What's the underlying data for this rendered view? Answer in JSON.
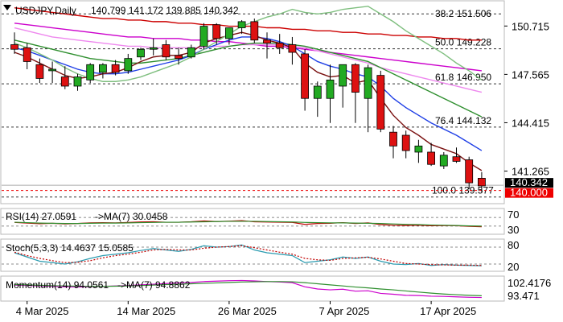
{
  "header": {
    "symbol": "USDJPY,Daily",
    "ohlc": "140.799 141.172 139.885 140.342"
  },
  "chart_data": [
    {
      "type": "candlestick",
      "title": "USDJPY,Daily",
      "ylim": [
        139.3,
        152.2
      ],
      "price_axis_labels": [
        "150.715",
        "147.565",
        "144.415",
        "141.265"
      ],
      "current_price_label": "140.342",
      "marker_price_label": "140.000",
      "fib_levels": [
        {
          "label": "50.0 149.228",
          "value": 149.228
        },
        {
          "label": "61.8 146.950",
          "value": 146.95
        },
        {
          "label": "76.4 144.132",
          "value": 144.132
        },
        {
          "label": "100.0 139.577",
          "value": 139.577
        }
      ],
      "fib_top_partial_label": "38.2 151.506",
      "fib_top_value": 151.506,
      "candles": [
        {
          "date": "2025-03-03",
          "o": 149.5,
          "h": 150.3,
          "l": 148.9,
          "c": 149.2
        },
        {
          "date": "2025-03-04",
          "o": 149.3,
          "h": 149.6,
          "l": 147.9,
          "c": 148.4
        },
        {
          "date": "2025-03-05",
          "o": 148.2,
          "h": 148.6,
          "l": 147.0,
          "c": 147.3
        },
        {
          "date": "2025-03-06",
          "o": 147.8,
          "h": 148.4,
          "l": 147.0,
          "c": 147.9
        },
        {
          "date": "2025-03-07",
          "o": 147.4,
          "h": 148.1,
          "l": 146.6,
          "c": 146.8
        },
        {
          "date": "2025-03-10",
          "o": 146.8,
          "h": 147.6,
          "l": 146.5,
          "c": 147.4
        },
        {
          "date": "2025-03-11",
          "o": 147.2,
          "h": 148.3,
          "l": 147.0,
          "c": 148.2
        },
        {
          "date": "2025-03-12",
          "o": 147.7,
          "h": 148.3,
          "l": 147.3,
          "c": 148.2
        },
        {
          "date": "2025-03-13",
          "o": 148.2,
          "h": 148.5,
          "l": 147.5,
          "c": 147.7
        },
        {
          "date": "2025-03-14",
          "o": 147.8,
          "h": 148.9,
          "l": 147.6,
          "c": 148.6
        },
        {
          "date": "2025-03-17",
          "o": 148.7,
          "h": 149.3,
          "l": 148.5,
          "c": 149.2
        },
        {
          "date": "2025-03-18",
          "o": 149.2,
          "h": 149.9,
          "l": 148.8,
          "c": 149.3
        },
        {
          "date": "2025-03-19",
          "o": 149.5,
          "h": 149.8,
          "l": 148.5,
          "c": 148.7
        },
        {
          "date": "2025-03-20",
          "o": 148.8,
          "h": 149.3,
          "l": 148.2,
          "c": 148.6
        },
        {
          "date": "2025-03-21",
          "o": 148.7,
          "h": 149.5,
          "l": 148.6,
          "c": 149.3
        },
        {
          "date": "2025-03-24",
          "o": 149.4,
          "h": 150.9,
          "l": 149.2,
          "c": 150.7
        },
        {
          "date": "2025-03-25",
          "o": 150.8,
          "h": 150.9,
          "l": 149.5,
          "c": 149.9
        },
        {
          "date": "2025-03-26",
          "o": 149.9,
          "h": 150.6,
          "l": 149.5,
          "c": 150.6
        },
        {
          "date": "2025-03-27",
          "o": 150.6,
          "h": 151.1,
          "l": 150.2,
          "c": 151.0
        },
        {
          "date": "2025-03-28",
          "o": 151.0,
          "h": 151.2,
          "l": 149.6,
          "c": 149.8
        },
        {
          "date": "2025-03-31",
          "o": 149.8,
          "h": 150.3,
          "l": 148.6,
          "c": 149.6
        },
        {
          "date": "2025-04-01",
          "o": 149.6,
          "h": 150.2,
          "l": 148.9,
          "c": 149.3
        },
        {
          "date": "2025-04-02",
          "o": 149.5,
          "h": 150.0,
          "l": 148.2,
          "c": 149.0
        },
        {
          "date": "2025-04-03",
          "o": 148.9,
          "h": 149.2,
          "l": 145.2,
          "c": 146.0
        },
        {
          "date": "2025-04-04",
          "o": 146.0,
          "h": 147.1,
          "l": 144.8,
          "c": 146.8
        },
        {
          "date": "2025-04-07",
          "o": 146.0,
          "h": 148.2,
          "l": 144.4,
          "c": 147.2
        },
        {
          "date": "2025-04-08",
          "o": 146.8,
          "h": 148.2,
          "l": 145.4,
          "c": 148.2
        },
        {
          "date": "2025-04-09",
          "o": 148.2,
          "h": 148.3,
          "l": 144.4,
          "c": 146.4
        },
        {
          "date": "2025-04-10",
          "o": 146.0,
          "h": 148.2,
          "l": 143.8,
          "c": 148.0
        },
        {
          "date": "2025-04-11",
          "o": 147.5,
          "h": 147.8,
          "l": 143.8,
          "c": 144.0
        },
        {
          "date": "2025-04-14",
          "o": 143.8,
          "h": 144.2,
          "l": 142.1,
          "c": 142.9
        },
        {
          "date": "2025-04-15",
          "o": 143.6,
          "h": 143.9,
          "l": 142.1,
          "c": 142.6
        },
        {
          "date": "2025-04-16",
          "o": 142.5,
          "h": 143.3,
          "l": 141.8,
          "c": 142.9
        },
        {
          "date": "2025-04-17",
          "o": 142.5,
          "h": 143.1,
          "l": 141.6,
          "c": 141.7
        },
        {
          "date": "2025-04-18",
          "o": 141.6,
          "h": 142.5,
          "l": 141.4,
          "c": 142.3
        },
        {
          "date": "2025-04-21",
          "o": 142.2,
          "h": 142.8,
          "l": 141.8,
          "c": 141.9
        },
        {
          "date": "2025-04-22",
          "o": 142.0,
          "h": 142.2,
          "l": 140.1,
          "c": 140.5
        },
        {
          "date": "2025-04-23",
          "o": 140.8,
          "h": 141.2,
          "l": 139.9,
          "c": 140.3
        }
      ],
      "moving_averages": [
        {
          "color": "#cc0000",
          "values": [
            151.9,
            151.8,
            151.7,
            151.6,
            151.5,
            151.4,
            151.3,
            151.2,
            151.2,
            151.1,
            151.1,
            151.0,
            151.0,
            150.9,
            150.9,
            150.8,
            150.8,
            150.7,
            150.7,
            150.7,
            150.6,
            150.6,
            150.5,
            150.5,
            150.4,
            150.4,
            150.3,
            150.3,
            150.2,
            150.2,
            150.1,
            150.1,
            150.0,
            150.0,
            149.9,
            149.9,
            149.8,
            149.8
          ]
        },
        {
          "color": "#cc00cc",
          "values": [
            150.9,
            150.8,
            150.7,
            150.6,
            150.5,
            150.4,
            150.3,
            150.2,
            150.1,
            150.0,
            150.0,
            149.9,
            149.9,
            149.9,
            149.8,
            149.8,
            149.7,
            149.7,
            149.6,
            149.5,
            149.4,
            149.4,
            149.3,
            149.2,
            149.1,
            149.0,
            148.9,
            148.8,
            148.7,
            148.6,
            148.5,
            148.4,
            148.3,
            148.2,
            148.1,
            148.0,
            147.9,
            147.8
          ]
        },
        {
          "color": "#ee88ee",
          "values": [
            150.6,
            150.4,
            150.2,
            150.0,
            149.9,
            149.8,
            149.7,
            149.6,
            149.5,
            149.4,
            149.4,
            149.3,
            149.3,
            149.3,
            149.3,
            149.3,
            149.4,
            149.4,
            149.5,
            149.5,
            149.5,
            149.5,
            149.4,
            149.3,
            149.1,
            148.9,
            148.7,
            148.5,
            148.3,
            148.0,
            147.8,
            147.6,
            147.4,
            147.2,
            147.0,
            146.8,
            146.6,
            146.4
          ]
        },
        {
          "color": "#2f8f2f",
          "values": [
            149.8,
            149.6,
            149.4,
            149.2,
            149.0,
            148.8,
            148.6,
            148.5,
            148.4,
            148.3,
            148.3,
            148.4,
            148.5,
            148.6,
            148.8,
            149.0,
            149.2,
            149.4,
            149.5,
            149.6,
            149.6,
            149.6,
            149.5,
            149.4,
            149.2,
            149.0,
            148.8,
            148.6,
            148.4,
            148.0,
            147.6,
            147.2,
            146.8,
            146.4,
            146.0,
            145.6,
            145.2,
            144.8
          ]
        },
        {
          "color": "#1f3fe6",
          "values": [
            149.3,
            149.1,
            148.8,
            148.5,
            148.2,
            147.9,
            147.7,
            147.6,
            147.6,
            147.7,
            147.9,
            148.1,
            148.3,
            148.5,
            148.8,
            149.2,
            149.5,
            149.8,
            150.0,
            150.0,
            149.9,
            149.7,
            149.4,
            148.9,
            148.4,
            148.1,
            147.9,
            147.6,
            147.4,
            146.8,
            146.0,
            145.4,
            144.9,
            144.4,
            144.0,
            143.6,
            143.1,
            142.6
          ]
        },
        {
          "color": "#7a1010",
          "values": [
            149.0,
            148.7,
            148.3,
            147.9,
            147.5,
            147.3,
            147.4,
            147.6,
            147.7,
            148.0,
            148.4,
            148.7,
            148.8,
            148.8,
            149.0,
            149.6,
            149.9,
            150.1,
            150.3,
            150.1,
            149.8,
            149.6,
            149.3,
            148.3,
            147.7,
            147.4,
            147.5,
            147.0,
            147.2,
            146.0,
            144.9,
            144.1,
            143.6,
            143.0,
            142.7,
            142.4,
            141.8,
            141.3
          ]
        },
        {
          "color": "#7fbf7f",
          "values": [
            149.6,
            149.3,
            148.9,
            148.5,
            148.0,
            147.6,
            147.3,
            147.1,
            147.1,
            147.2,
            147.4,
            147.7,
            148.0,
            148.3,
            148.7,
            149.2,
            149.7,
            150.2,
            150.7,
            151.0,
            151.3,
            151.5,
            151.8,
            151.6,
            151.5,
            151.6,
            151.8,
            151.9,
            152.0,
            151.5,
            151.0,
            150.4,
            149.9,
            149.4,
            148.9,
            148.3,
            147.8,
            147.2
          ]
        }
      ]
    },
    {
      "type": "line",
      "title": "RSI(14) 27.0591",
      "subtitle": "->MA(7) 30.0458",
      "ylim": [
        0,
        100
      ],
      "tick_labels": [
        "70",
        "30"
      ],
      "levels": [
        70,
        30
      ],
      "series": [
        {
          "color": "#c00000",
          "values": [
            47,
            44,
            41,
            43,
            40,
            42,
            45,
            46,
            45,
            47,
            49,
            50,
            48,
            48,
            50,
            54,
            51,
            53,
            55,
            50,
            49,
            48,
            47,
            38,
            42,
            43,
            46,
            42,
            45,
            37,
            34,
            33,
            34,
            32,
            33,
            32,
            29,
            27
          ]
        },
        {
          "color": "#2f8f2f",
          "values": [
            48,
            46,
            44,
            43,
            42,
            42,
            43,
            44,
            44,
            45,
            46,
            47,
            48,
            48,
            49,
            50,
            51,
            52,
            52,
            52,
            51,
            50,
            49,
            47,
            46,
            45,
            45,
            44,
            43,
            42,
            40,
            38,
            37,
            35,
            34,
            33,
            31,
            30
          ]
        }
      ]
    },
    {
      "type": "line",
      "title": "Stoch(5,3,3) 14.4637 15.0585",
      "ylim": [
        0,
        100
      ],
      "tick_labels": [
        "80",
        "20"
      ],
      "levels": [
        80,
        20
      ],
      "series": [
        {
          "color": "#2a9bb0",
          "values": [
            60,
            45,
            30,
            25,
            20,
            28,
            40,
            50,
            55,
            60,
            68,
            75,
            70,
            65,
            72,
            85,
            80,
            82,
            88,
            70,
            60,
            55,
            50,
            25,
            30,
            35,
            45,
            40,
            45,
            30,
            20,
            18,
            22,
            15,
            18,
            16,
            15,
            14
          ]
        },
        {
          "color": "#c00000",
          "values": [
            62,
            50,
            40,
            32,
            25,
            26,
            32,
            42,
            50,
            55,
            62,
            70,
            72,
            70,
            70,
            76,
            80,
            82,
            85,
            78,
            70,
            62,
            55,
            40,
            35,
            33,
            40,
            42,
            44,
            38,
            30,
            22,
            20,
            18,
            17,
            16,
            16,
            15
          ]
        }
      ]
    },
    {
      "type": "line",
      "title": "Momentum(14) 94.0561",
      "subtitle": "->MA(7) 94.8862",
      "ylim": [
        93.2,
        102.8
      ],
      "tick_labels": [
        "102.4176",
        "93.471"
      ],
      "series": [
        {
          "color": "#cc00cc",
          "values": [
            99.8,
            99.6,
            99.4,
            99.2,
            99.0,
            98.9,
            99.0,
            99.2,
            99.4,
            99.6,
            99.9,
            100.2,
            100.5,
            100.8,
            101.0,
            101.4,
            101.6,
            101.8,
            101.9,
            101.7,
            101.4,
            101.2,
            100.9,
            99.0,
            98.0,
            97.6,
            97.9,
            97.0,
            97.2,
            96.0,
            95.6,
            95.1,
            95.0,
            94.7,
            94.6,
            94.4,
            94.2,
            94.1
          ]
        },
        {
          "color": "#2f8f2f",
          "values": [
            100.0,
            99.9,
            99.7,
            99.5,
            99.4,
            99.3,
            99.2,
            99.2,
            99.3,
            99.4,
            99.6,
            99.8,
            100.0,
            100.2,
            100.4,
            100.6,
            100.8,
            101.0,
            101.2,
            101.3,
            101.4,
            101.4,
            101.3,
            100.9,
            100.4,
            99.9,
            99.4,
            98.9,
            98.5,
            98.0,
            97.6,
            97.1,
            96.6,
            96.1,
            95.7,
            95.4,
            95.1,
            94.9
          ]
        }
      ]
    }
  ],
  "x_axis": {
    "date_labels": [
      {
        "text": "4 Mar 2025",
        "index": 1
      },
      {
        "text": "14 Mar 2025",
        "index": 9
      },
      {
        "text": "26 Mar 2025",
        "index": 17
      },
      {
        "text": "7 Apr 2025",
        "index": 25
      },
      {
        "text": "17 Apr 2025",
        "index": 33
      }
    ]
  },
  "colors": {
    "bull_candle": "#22aa22",
    "bear_candle": "#dd1111",
    "current_price_bg": "#000000",
    "marker_price_bg": "#ee0000"
  }
}
